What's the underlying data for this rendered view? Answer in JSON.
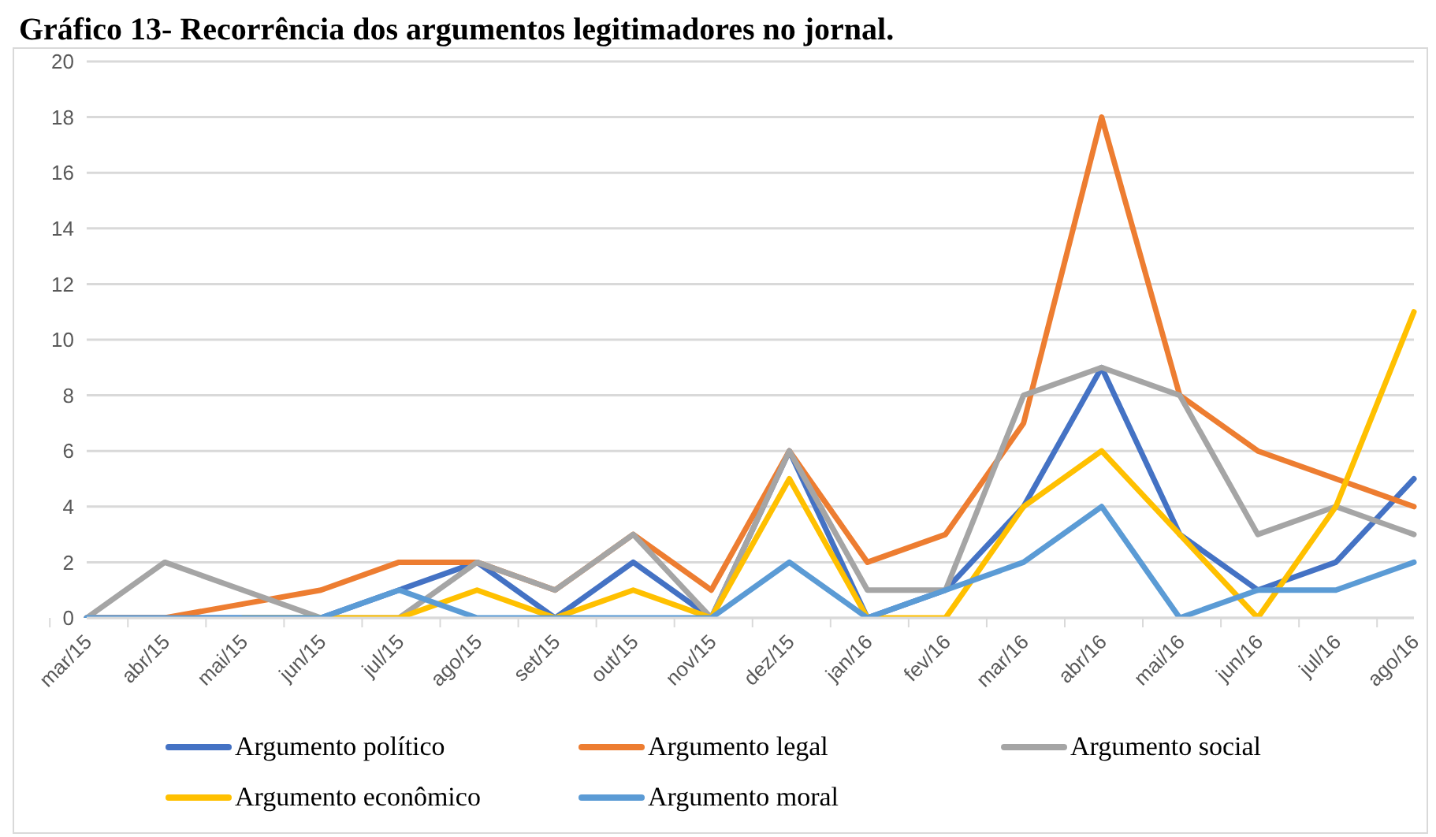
{
  "chart_data": {
    "type": "line",
    "title": "Gráfico 13- Recorrência dos argumentos legitimadores no jornal.",
    "categories": [
      "mar/15",
      "abr/15",
      "mai/15",
      "jun/15",
      "jul/15",
      "ago/15",
      "set/15",
      "out/15",
      "nov/15",
      "dez/15",
      "jan/16",
      "fev/16",
      "mar/16",
      "abr/16",
      "mai/16",
      "jun/16",
      "jul/16",
      "ago/16"
    ],
    "series": [
      {
        "name": "Argumento político",
        "color": "#4472c4",
        "values": [
          0,
          0,
          0,
          0,
          1,
          2,
          0,
          2,
          0,
          6,
          0,
          1,
          4,
          9,
          3,
          1,
          2,
          5
        ]
      },
      {
        "name": "Argumento legal",
        "color": "#ed7d31",
        "values": [
          0,
          0,
          0.5,
          1,
          2,
          2,
          1,
          3,
          1,
          6,
          2,
          3,
          7,
          18,
          8,
          6,
          5,
          4
        ]
      },
      {
        "name": "Argumento social",
        "color": "#a5a5a5",
        "values": [
          0,
          2,
          1,
          0,
          0,
          2,
          1,
          3,
          0,
          6,
          1,
          1,
          8,
          9,
          8,
          3,
          4,
          3
        ]
      },
      {
        "name": "Argumento econômico",
        "color": "#ffc000",
        "values": [
          null,
          null,
          0,
          0,
          0,
          1,
          0,
          1,
          0,
          5,
          0,
          0,
          4,
          6,
          3,
          0,
          4,
          11
        ]
      },
      {
        "name": "Argumento moral",
        "color": "#5b9bd5",
        "values": [
          0,
          0,
          0,
          0,
          1,
          0,
          0,
          0,
          0,
          2,
          0,
          1,
          2,
          4,
          0,
          1,
          1,
          2
        ]
      }
    ],
    "ylim": [
      0,
      20
    ],
    "yticks": [
      0,
      2,
      4,
      6,
      8,
      10,
      12,
      14,
      16,
      18,
      20
    ],
    "grid": "y",
    "legend": "bottom",
    "marker": "none",
    "line_style": "solid"
  }
}
